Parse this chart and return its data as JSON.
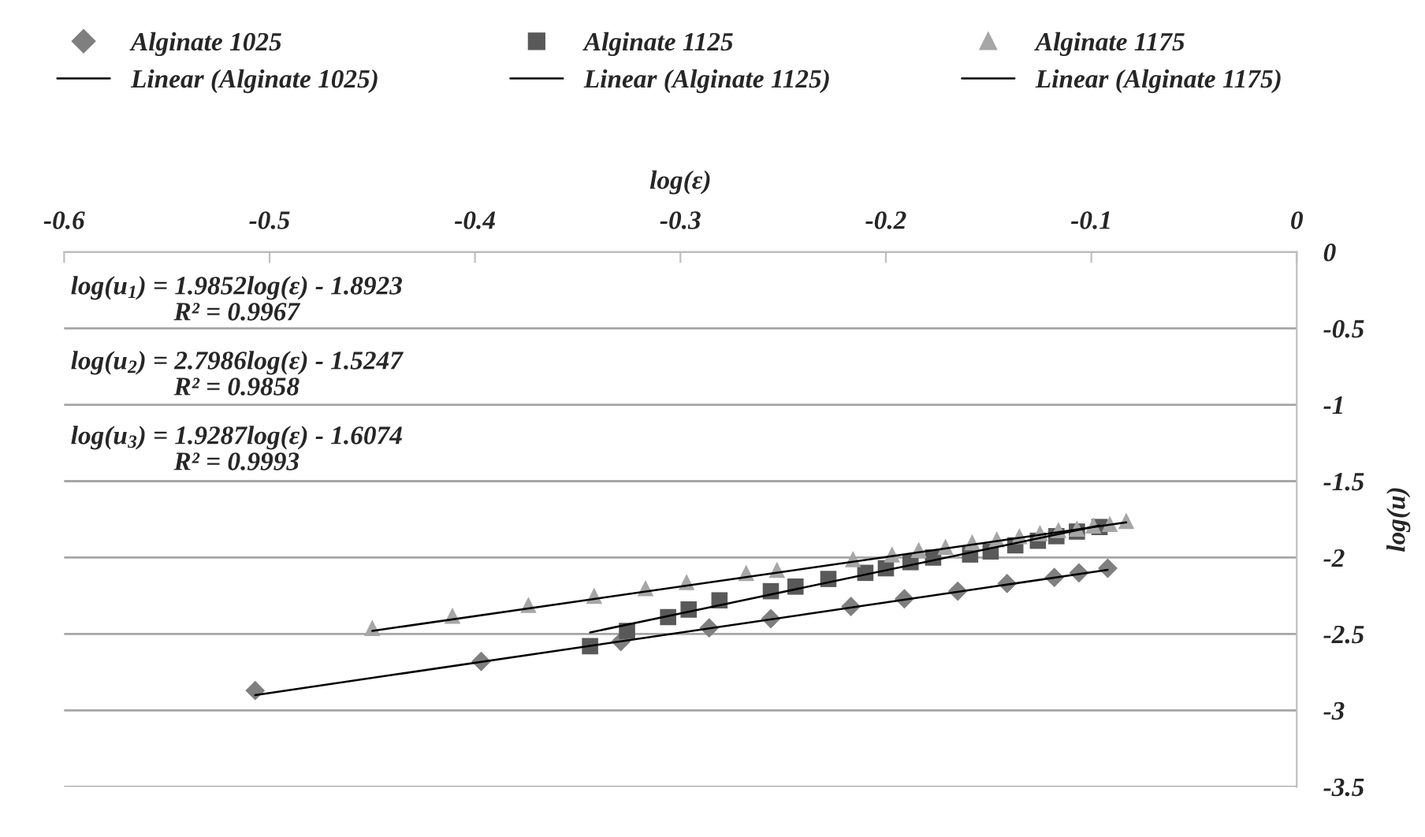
{
  "chart_data": {
    "type": "scatter",
    "xlabel": "log(ε)",
    "ylabel": "log(u)",
    "xlim": [
      -0.6,
      0
    ],
    "xticks": [
      -0.6,
      -0.5,
      -0.4,
      -0.3,
      -0.2,
      -0.1,
      0
    ],
    "ylim": [
      -3.5,
      0
    ],
    "yticks": [
      0,
      -0.5,
      -1,
      -1.5,
      -2,
      -2.5,
      -3,
      -3.5
    ],
    "grid": "y",
    "legend": "top",
    "series": [
      {
        "name": "Alginate 1025",
        "marker": "diamond",
        "color": "#7f7f7f",
        "x": [
          -0.507,
          -0.397,
          -0.329,
          -0.286,
          -0.256,
          -0.217,
          -0.191,
          -0.165,
          -0.141,
          -0.118,
          -0.106,
          -0.092
        ],
        "values": [
          -2.87,
          -2.68,
          -2.55,
          -2.46,
          -2.4,
          -2.32,
          -2.27,
          -2.22,
          -2.17,
          -2.13,
          -2.1,
          -2.07
        ]
      },
      {
        "name": "Linear (Alginate 1025)",
        "type": "line",
        "marker": "none",
        "color": "#000000",
        "x": [
          -0.507,
          -0.092
        ],
        "values": [
          -2.9,
          -2.08
        ]
      },
      {
        "name": "Alginate 1125",
        "marker": "square",
        "color": "#595959",
        "x": [
          -0.344,
          -0.326,
          -0.306,
          -0.296,
          -0.281,
          -0.256,
          -0.244,
          -0.228,
          -0.21,
          -0.2,
          -0.188,
          -0.177,
          -0.159,
          -0.149,
          -0.137,
          -0.126,
          -0.117,
          -0.107,
          -0.096
        ],
        "values": [
          -2.58,
          -2.48,
          -2.39,
          -2.34,
          -2.28,
          -2.22,
          -2.19,
          -2.14,
          -2.1,
          -2.07,
          -2.03,
          -2.0,
          -1.98,
          -1.96,
          -1.92,
          -1.89,
          -1.86,
          -1.83,
          -1.8
        ]
      },
      {
        "name": "Linear (Alginate 1125)",
        "type": "line",
        "marker": "none",
        "color": "#000000",
        "x": [
          -0.344,
          -0.096
        ],
        "values": [
          -2.49,
          -1.79
        ]
      },
      {
        "name": "Alginate 1175",
        "marker": "triangle",
        "color": "#a6a6a6",
        "x": [
          -0.45,
          -0.411,
          -0.374,
          -0.342,
          -0.317,
          -0.297,
          -0.268,
          -0.253,
          -0.216,
          -0.197,
          -0.184,
          -0.171,
          -0.158,
          -0.146,
          -0.135,
          -0.125,
          -0.116,
          -0.107,
          -0.099,
          -0.091,
          -0.083
        ],
        "values": [
          -2.46,
          -2.38,
          -2.31,
          -2.25,
          -2.2,
          -2.16,
          -2.1,
          -2.08,
          -2.01,
          -1.98,
          -1.95,
          -1.93,
          -1.9,
          -1.88,
          -1.86,
          -1.84,
          -1.82,
          -1.81,
          -1.79,
          -1.78,
          -1.76
        ]
      },
      {
        "name": "Linear (Alginate 1175)",
        "type": "line",
        "marker": "none",
        "color": "#000000",
        "x": [
          -0.45,
          -0.083
        ],
        "values": [
          -2.48,
          -1.77
        ]
      }
    ],
    "annotations": [
      "log(u$_{1}$) = 1.9852log(ε) - 1.8923\nR² = 0.9967",
      "log(u$_{2}$) = 2.7986log(ε) - 1.5247\nR² = 0.9858",
      "log(u$_{3}$) = 1.9287log(ε) - 1.6074\nR² = 0.9993"
    ]
  }
}
